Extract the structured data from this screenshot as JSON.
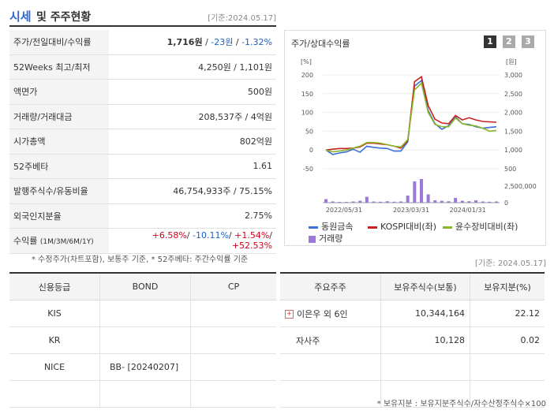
{
  "header": {
    "title_a": "시세",
    "title_b": "및 주주현황",
    "date": "[기준:2024.05.17]"
  },
  "quote": {
    "price_label": "주가/전일대비/수익률",
    "price": "1,716원",
    "change": "-23원",
    "change_pct": "-1.32%",
    "w52_label": "52Weeks 최고/최저",
    "w52": "4,250원 / 1,101원",
    "par_label": "액면가",
    "par": "500원",
    "volume_label": "거래량/거래대금",
    "volume": "208,537주 / 4억원",
    "mcap_label": "시가총액",
    "mcap": "802억원",
    "beta_label": "52주베타",
    "beta": "1.61",
    "shares_label": "발행주식수/유동비율",
    "shares": "46,754,933주 / 75.15%",
    "foreign_label": "외국인지분율",
    "foreign": "2.75%",
    "return_label": "수익률",
    "return_period": "(1M/3M/6M/1Y)",
    "r1": "+6.58%",
    "r2": "-10.11%",
    "r3": "+1.54%",
    "r4": "+52.53%"
  },
  "note1": "* 수정주가(차트포함), 보통주 기준, * 52주베타: 주간수익률 기준",
  "note1b": "[기준: 2024.05.17]",
  "chart_title": "주가/상대수익률",
  "pages": [
    "1",
    "2",
    "3"
  ],
  "chart_data": {
    "type": "line",
    "y_left_label": "[%]",
    "y_right_label": "[원]",
    "y_left_ticks": [
      "200",
      "150",
      "100",
      "50",
      "0",
      "-50"
    ],
    "y_right_ticks": [
      "3,000",
      "2,500",
      "2,000",
      "1,500",
      "1,000",
      "500"
    ],
    "volume_tick": "2,500,000",
    "volume_zero": "0",
    "zero_left": "0",
    "x_ticks": [
      "2022/05/31",
      "2023/03/31",
      "2024/01/31"
    ],
    "ylim": [
      -50,
      200
    ],
    "series": [
      {
        "name": "동원금속",
        "color": "#3a6fd8",
        "values": [
          0,
          -12,
          -8,
          -5,
          2,
          -6,
          10,
          7,
          5,
          4,
          -3,
          -3,
          22,
          170,
          185,
          105,
          70,
          55,
          65,
          88,
          70,
          68,
          62,
          58,
          60,
          62
        ]
      },
      {
        "name": "KOSPI대비(좌)",
        "color": "#c82020",
        "values": [
          0,
          2,
          4,
          4,
          5,
          8,
          18,
          18,
          16,
          14,
          10,
          5,
          25,
          182,
          195,
          118,
          82,
          72,
          70,
          92,
          80,
          86,
          80,
          76,
          75,
          74
        ]
      },
      {
        "name": "윤수장비대비(좌)",
        "color": "#8ab82a",
        "values": [
          0,
          -5,
          -3,
          0,
          5,
          10,
          20,
          20,
          18,
          14,
          10,
          8,
          28,
          160,
          178,
          100,
          68,
          62,
          62,
          85,
          70,
          66,
          64,
          58,
          50,
          52
        ]
      }
    ],
    "volume": {
      "name": "거래량",
      "color": "#9b79d9",
      "values": [
        0.15,
        0.05,
        0.03,
        0.03,
        0.05,
        0.08,
        0.25,
        0.05,
        0.04,
        0.06,
        0.04,
        0.05,
        0.3,
        0.9,
        1.0,
        0.35,
        0.1,
        0.08,
        0.06,
        0.2,
        0.08,
        0.06,
        0.1,
        0.05,
        0.04,
        0.05
      ]
    }
  },
  "credit": {
    "headers": [
      "신용등급",
      "BOND",
      "CP"
    ],
    "rows": [
      [
        "KIS",
        "",
        ""
      ],
      [
        "KR",
        "",
        ""
      ],
      [
        "NICE",
        "BB-  [20240207]",
        ""
      ],
      [
        "",
        "",
        ""
      ]
    ]
  },
  "holders": {
    "headers": [
      "주요주주",
      "보유주식수(보통)",
      "보유지분(%)"
    ],
    "rows": [
      [
        "이은우 외 6인",
        "10,344,164",
        "22.12"
      ],
      [
        "자사주",
        "10,128",
        "0.02"
      ],
      [
        "",
        "",
        ""
      ],
      [
        "",
        "",
        ""
      ]
    ]
  },
  "note2": "* 보유지분 : 보유지분주식수/자수산정주식수×100"
}
